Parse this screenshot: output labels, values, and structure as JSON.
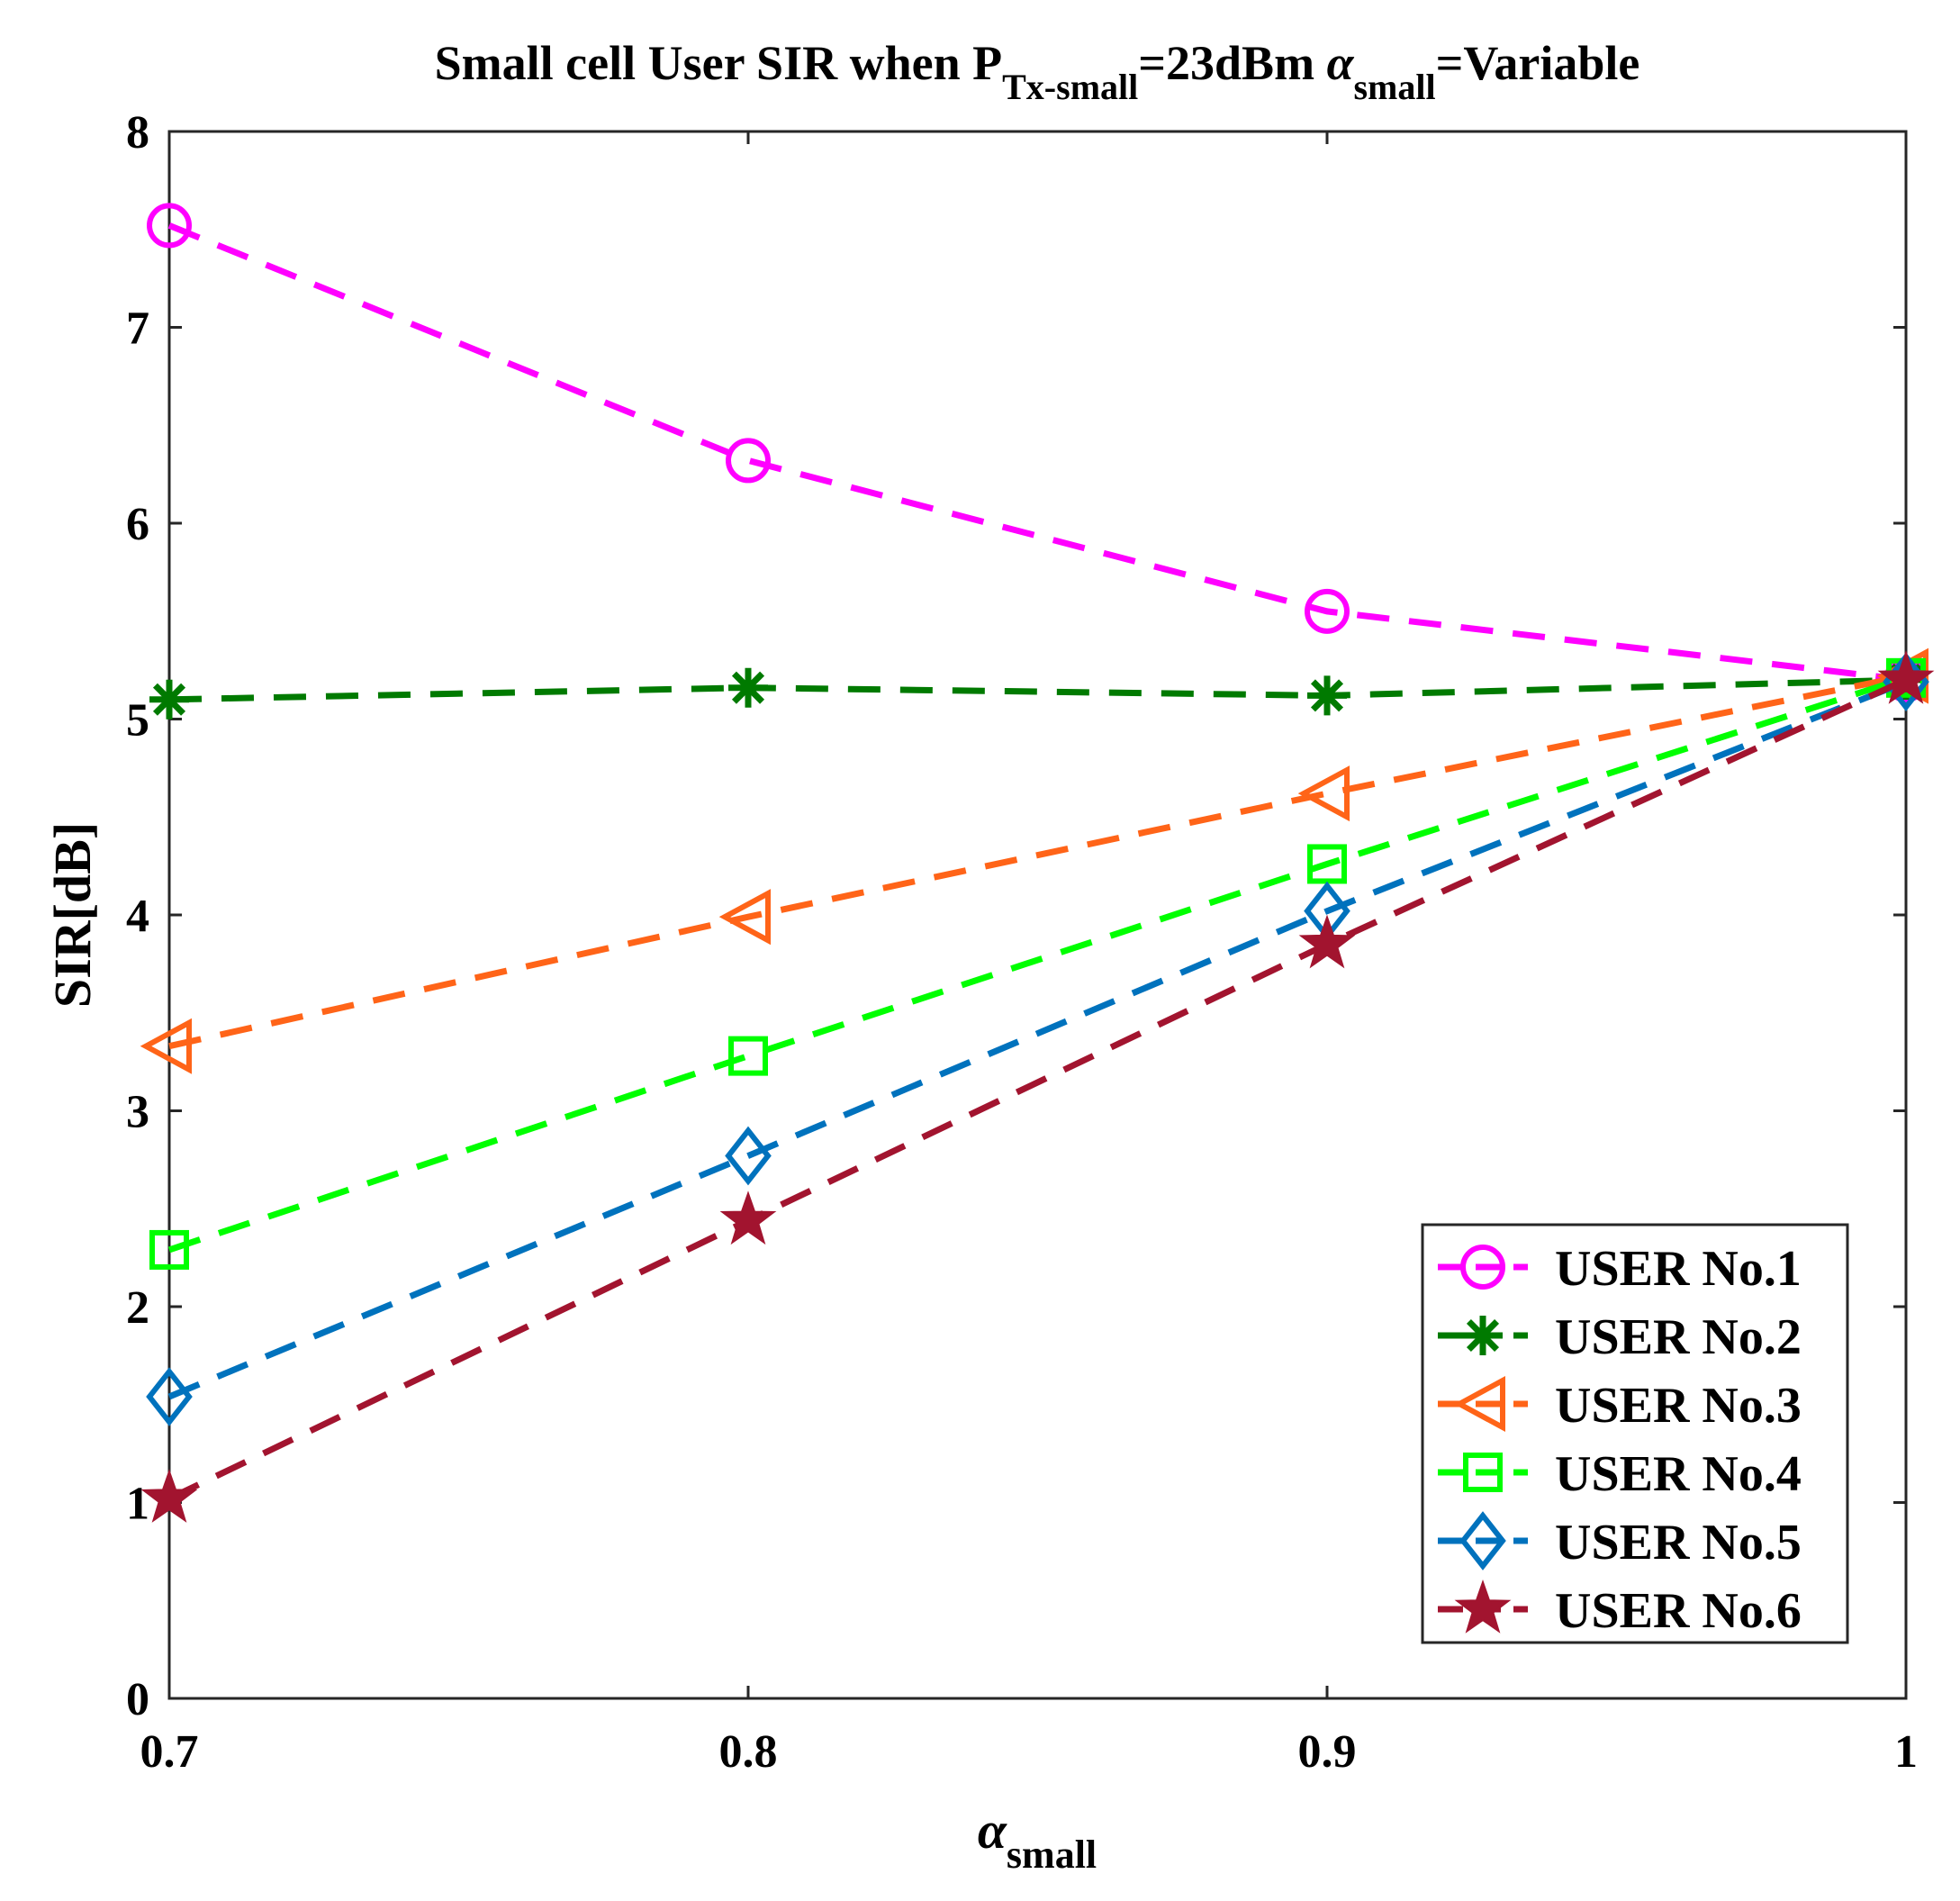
{
  "chart_data": {
    "type": "line",
    "title": {
      "prefix": "Small cell User SIR when P",
      "p_sub": "Tx-small",
      "middle": "=23dBm ",
      "alpha": "α",
      "alpha_sub": "small",
      "suffix": "=Variable"
    },
    "xlabel": {
      "symbol": "α",
      "sub": "small"
    },
    "ylabel": "SIR[dB]",
    "x": [
      0.7,
      0.8,
      0.9,
      1
    ],
    "xlim": [
      0.7,
      1
    ],
    "ylim": [
      0,
      8
    ],
    "xticks": [
      0.7,
      0.8,
      0.9,
      1
    ],
    "xtick_labels": [
      "0.7",
      "0.8",
      "0.9",
      "1"
    ],
    "yticks": [
      0,
      1,
      2,
      3,
      4,
      5,
      6,
      7,
      8
    ],
    "ytick_labels": [
      "0",
      "1",
      "2",
      "3",
      "4",
      "5",
      "6",
      "7",
      "8"
    ],
    "grid": false,
    "legend_position": "bottom-right",
    "series": [
      {
        "name": "USER No.1",
        "values": [
          7.52,
          6.32,
          5.55,
          5.2
        ],
        "color": "#ff00ff",
        "marker": "circle"
      },
      {
        "name": "USER No.2",
        "values": [
          5.1,
          5.16,
          5.12,
          5.2
        ],
        "color": "#007a00",
        "marker": "asterisk"
      },
      {
        "name": "USER No.3",
        "values": [
          3.33,
          3.99,
          4.62,
          5.22
        ],
        "color": "#ff6418",
        "marker": "triangle-left"
      },
      {
        "name": "USER No.4",
        "values": [
          2.29,
          3.28,
          4.26,
          5.21
        ],
        "color": "#00ff00",
        "marker": "square"
      },
      {
        "name": "USER No.5",
        "values": [
          1.54,
          2.77,
          4.02,
          5.19
        ],
        "color": "#0072bd",
        "marker": "diamond"
      },
      {
        "name": "USER No.6",
        "values": [
          1.02,
          2.44,
          3.85,
          5.2
        ],
        "color": "#a2142f",
        "marker": "star"
      }
    ]
  }
}
